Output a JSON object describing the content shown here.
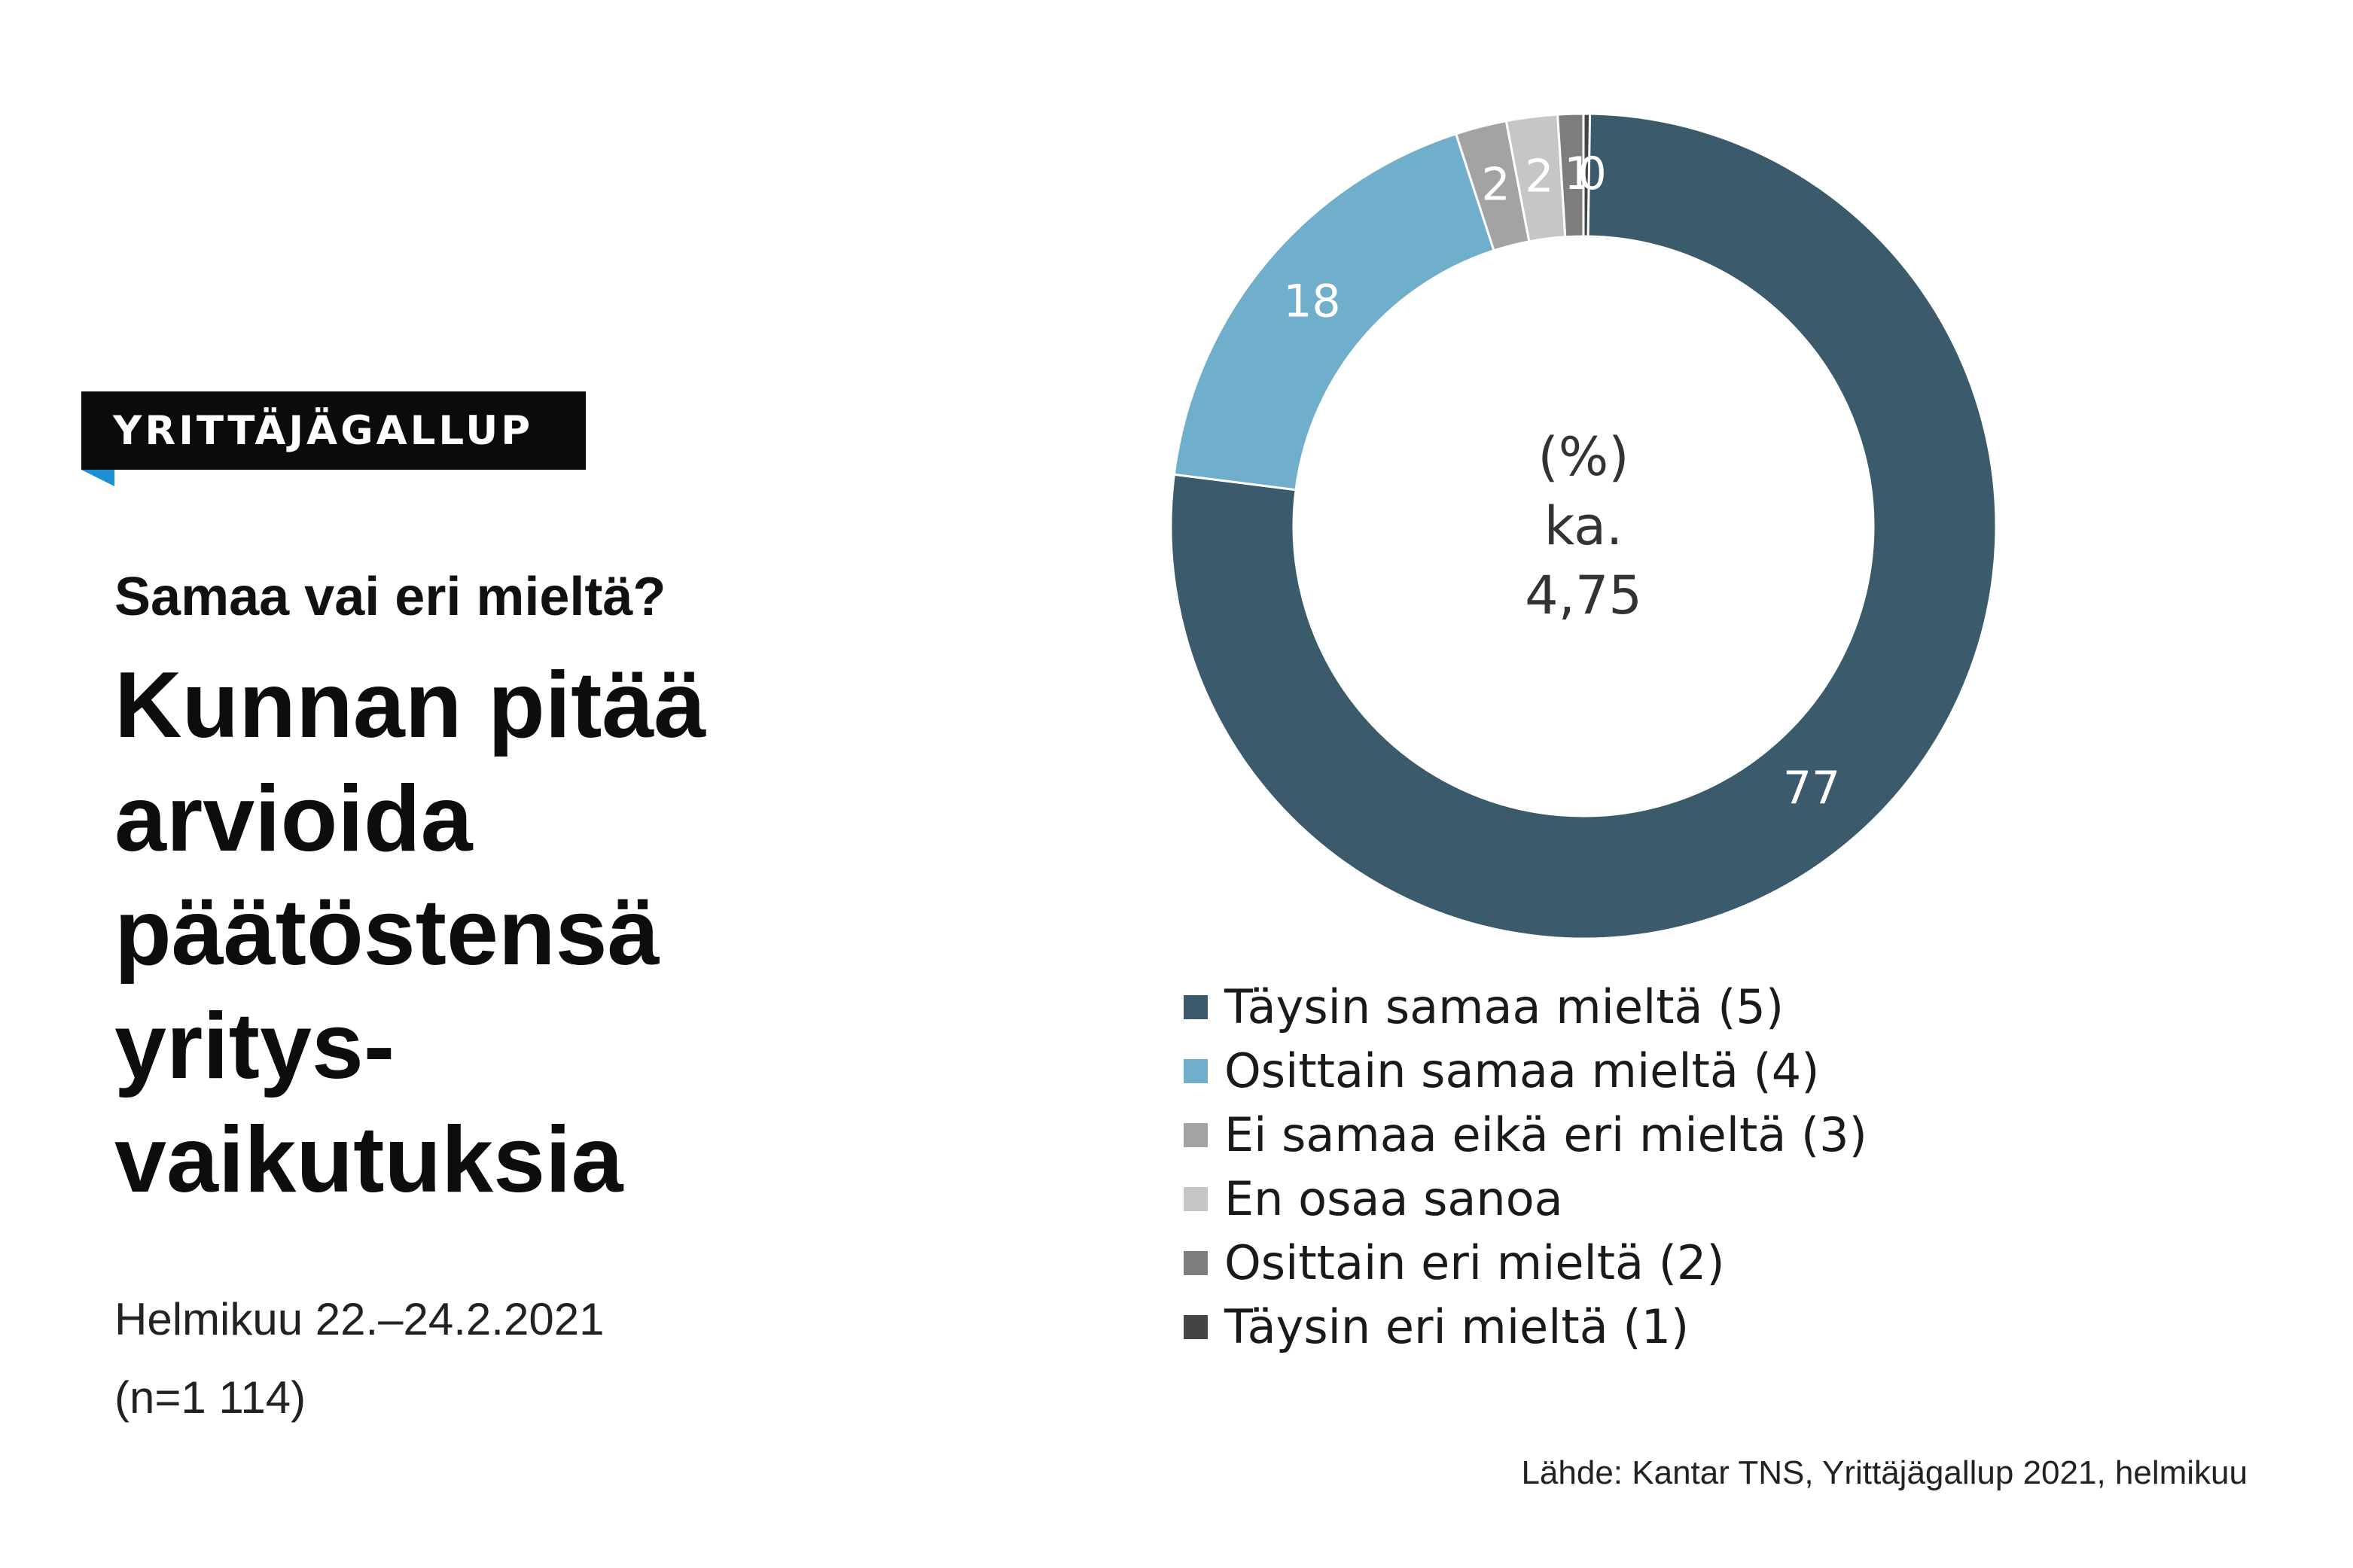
{
  "badge": {
    "label": "YRITTÄJÄGALLUP"
  },
  "kicker": "Samaa vai eri mieltä?",
  "headline": [
    "Kunnan pitää",
    "arvioida",
    "päätöstensä",
    "yritys-",
    "vaikutuksia"
  ],
  "date": "Helmikuu 22.–24.2.2021",
  "sample": "(n=1 114)",
  "source": "Lähde: Kantar TNS, Yrittäjägallup 2021, helmikuu",
  "chart_data": {
    "type": "pie",
    "donut": true,
    "unit": "%",
    "center_text": [
      "(%)",
      "ka.",
      "4,75"
    ],
    "categories": [
      "Täysin samaa mieltä (5)",
      "Osittain samaa mieltä (4)",
      "Ei samaa eikä eri mieltä (3)",
      "En osaa sanoa",
      "Osittain eri mieltä (2)",
      "Täysin eri mieltä (1)"
    ],
    "values": [
      77,
      18,
      2,
      2,
      1,
      0
    ],
    "value_labels": [
      "77",
      "18",
      "2",
      "2",
      "1",
      "0"
    ],
    "colors": [
      "#3b5a6b",
      "#6fafcc",
      "#a3a3a3",
      "#c6c6c6",
      "#7d7d7d",
      "#444444"
    ],
    "label_colors": [
      "#ffffff",
      "#ffffff",
      "#ffffff",
      "#ffffff",
      "#ffffff",
      "#ffffff"
    ],
    "legend_position": "bottom"
  }
}
